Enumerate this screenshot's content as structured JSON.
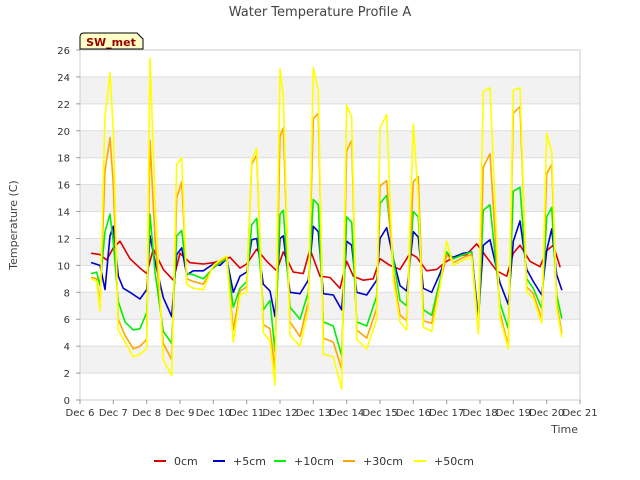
{
  "chart_data": {
    "type": "line",
    "title": "Water Temperature Profile A",
    "xlabel": "Time",
    "ylabel": "Temperature (C)",
    "badge": "SW_met",
    "xlim": [
      6,
      21
    ],
    "ylim": [
      0,
      26
    ],
    "x_ticks": [
      6,
      7,
      8,
      9,
      10,
      11,
      12,
      13,
      14,
      15,
      16,
      17,
      18,
      19,
      20,
      21
    ],
    "x_tick_labels": [
      "Dec 6",
      "Dec 7",
      "Dec 8",
      "Dec 9",
      "Dec 10",
      "Dec 11",
      "Dec 12",
      "Dec 13",
      "Dec 14",
      "Dec 15",
      "Dec 16",
      "Dec 17",
      "Dec 18",
      "Dec 19",
      "Dec 20",
      "Dec 21"
    ],
    "y_ticks": [
      0,
      2,
      4,
      6,
      8,
      10,
      12,
      14,
      16,
      18,
      20,
      22,
      24,
      26
    ],
    "y_tick_labels": [
      "0",
      "2",
      "4",
      "6",
      "8",
      "10",
      "12",
      "14",
      "16",
      "18",
      "20",
      "22",
      "24",
      "26"
    ],
    "grid": "horizontal bands",
    "legend_position": "bottom",
    "series": [
      {
        "name": "0cm",
        "color": "#dd0000",
        "x": [
          6.35,
          6.6,
          6.8,
          7.0,
          7.2,
          7.5,
          7.8,
          8.0,
          8.2,
          8.5,
          8.8,
          9.0,
          9.3,
          9.7,
          10.0,
          10.3,
          10.5,
          10.8,
          11.0,
          11.3,
          11.6,
          11.9,
          12.1,
          12.4,
          12.7,
          12.9,
          13.2,
          13.5,
          13.8,
          14.0,
          14.2,
          14.5,
          14.8,
          15.0,
          15.3,
          15.6,
          15.9,
          16.1,
          16.4,
          16.7,
          17.0,
          17.3,
          17.6,
          17.9,
          18.2,
          18.5,
          18.8,
          19.0,
          19.2,
          19.5,
          19.8,
          20.0,
          20.2,
          20.4
        ],
        "y": [
          10.9,
          10.8,
          10.4,
          11.3,
          11.8,
          10.5,
          9.8,
          9.4,
          11.2,
          9.7,
          8.9,
          10.9,
          10.2,
          10.1,
          10.2,
          10.4,
          10.6,
          9.8,
          10.1,
          11.2,
          10.3,
          9.6,
          11.0,
          9.5,
          9.4,
          11.2,
          9.2,
          9.1,
          8.3,
          10.3,
          9.2,
          8.9,
          9.0,
          10.5,
          10.0,
          9.7,
          10.9,
          10.6,
          9.6,
          9.7,
          10.3,
          10.7,
          10.8,
          11.6,
          10.6,
          9.6,
          9.2,
          10.9,
          11.5,
          10.3,
          9.9,
          11.1,
          11.5,
          9.9
        ]
      },
      {
        "name": "+5cm",
        "color": "#0000cc",
        "x": [
          6.35,
          6.6,
          6.75,
          6.9,
          7.0,
          7.15,
          7.3,
          7.5,
          7.8,
          8.0,
          8.1,
          8.25,
          8.5,
          8.75,
          8.9,
          9.05,
          9.2,
          9.4,
          9.7,
          10.0,
          10.2,
          10.4,
          10.6,
          10.8,
          11.0,
          11.15,
          11.3,
          11.5,
          11.7,
          11.85,
          12.0,
          12.1,
          12.3,
          12.6,
          12.85,
          13.0,
          13.15,
          13.3,
          13.6,
          13.85,
          14.0,
          14.15,
          14.3,
          14.6,
          14.9,
          15.0,
          15.2,
          15.4,
          15.6,
          15.8,
          16.0,
          16.15,
          16.3,
          16.55,
          16.8,
          17.0,
          17.2,
          17.5,
          17.75,
          17.95,
          18.1,
          18.3,
          18.6,
          18.85,
          19.0,
          19.2,
          19.4,
          19.6,
          19.85,
          20.0,
          20.15,
          20.3,
          20.45
        ],
        "y": [
          10.2,
          10.0,
          8.2,
          12.2,
          12.9,
          9.2,
          8.3,
          8.0,
          7.5,
          8.2,
          12.2,
          10.3,
          7.6,
          6.2,
          10.8,
          11.3,
          9.3,
          9.6,
          9.6,
          10.1,
          10.0,
          10.5,
          8.0,
          9.2,
          9.5,
          11.9,
          12.0,
          8.6,
          8.1,
          6.2,
          12.0,
          12.2,
          8.0,
          7.9,
          8.9,
          12.9,
          12.5,
          7.9,
          7.8,
          6.7,
          11.8,
          11.5,
          8.0,
          7.8,
          8.9,
          12.0,
          12.8,
          10.5,
          8.5,
          8.1,
          12.5,
          12.1,
          8.3,
          8.0,
          9.4,
          10.8,
          10.6,
          10.9,
          11.0,
          6.0,
          11.5,
          11.9,
          8.7,
          7.1,
          11.8,
          13.3,
          9.7,
          8.8,
          7.8,
          11.1,
          12.7,
          9.3,
          8.2
        ]
      },
      {
        "name": "+10cm",
        "color": "#00ee00",
        "x": [
          6.35,
          6.5,
          6.6,
          6.75,
          6.9,
          7.0,
          7.15,
          7.35,
          7.6,
          7.8,
          8.0,
          8.1,
          8.25,
          8.5,
          8.75,
          8.9,
          9.05,
          9.2,
          9.4,
          9.7,
          10.0,
          10.2,
          10.4,
          10.6,
          10.8,
          11.0,
          11.15,
          11.3,
          11.5,
          11.7,
          11.85,
          12.0,
          12.1,
          12.3,
          12.6,
          12.85,
          13.0,
          13.15,
          13.3,
          13.6,
          13.85,
          14.0,
          14.15,
          14.3,
          14.6,
          14.9,
          15.0,
          15.2,
          15.4,
          15.6,
          15.8,
          16.0,
          16.15,
          16.3,
          16.55,
          16.8,
          17.0,
          17.2,
          17.5,
          17.75,
          17.95,
          18.1,
          18.3,
          18.6,
          18.85,
          19.0,
          19.2,
          19.4,
          19.6,
          19.85,
          20.0,
          20.15,
          20.3,
          20.45
        ],
        "y": [
          9.4,
          9.5,
          8.5,
          12.5,
          13.8,
          11.7,
          7.3,
          5.8,
          5.2,
          5.3,
          6.5,
          13.8,
          9.5,
          5.1,
          4.2,
          12.2,
          12.6,
          9.4,
          9.3,
          9.0,
          9.8,
          10.2,
          10.5,
          6.9,
          8.3,
          8.8,
          13.0,
          13.5,
          6.7,
          7.4,
          3.6,
          13.8,
          14.1,
          6.9,
          6.0,
          8.0,
          14.9,
          14.5,
          5.8,
          5.5,
          3.3,
          13.6,
          13.2,
          5.8,
          5.5,
          7.7,
          14.6,
          15.2,
          10.5,
          7.4,
          7.0,
          14.0,
          13.6,
          6.7,
          6.3,
          8.9,
          11.0,
          10.5,
          10.8,
          11.0,
          5.4,
          14.1,
          14.5,
          7.2,
          5.3,
          15.5,
          15.8,
          9.0,
          8.3,
          6.8,
          13.6,
          14.3,
          7.8,
          6.1
        ]
      },
      {
        "name": "+30cm",
        "color": "#ffa500",
        "x": [
          6.35,
          6.5,
          6.6,
          6.75,
          6.9,
          7.0,
          7.15,
          7.35,
          7.6,
          7.8,
          8.0,
          8.1,
          8.25,
          8.5,
          8.75,
          8.9,
          9.05,
          9.2,
          9.4,
          9.7,
          10.0,
          10.2,
          10.4,
          10.6,
          10.8,
          11.0,
          11.15,
          11.3,
          11.5,
          11.7,
          11.85,
          12.0,
          12.1,
          12.3,
          12.6,
          12.85,
          13.0,
          13.15,
          13.3,
          13.6,
          13.85,
          14.0,
          14.15,
          14.3,
          14.6,
          14.9,
          15.0,
          15.2,
          15.4,
          15.6,
          15.8,
          16.0,
          16.15,
          16.3,
          16.55,
          16.8,
          17.0,
          17.2,
          17.5,
          17.75,
          17.95,
          18.1,
          18.3,
          18.6,
          18.85,
          19.0,
          19.2,
          19.4,
          19.6,
          19.85,
          20.0,
          20.15,
          20.3,
          20.45
        ],
        "y": [
          9.1,
          9.0,
          7.0,
          17.0,
          19.5,
          16.0,
          6.0,
          4.8,
          3.8,
          4.0,
          4.5,
          19.3,
          12.0,
          4.2,
          3.0,
          15.0,
          16.2,
          9.0,
          8.8,
          8.6,
          9.9,
          10.3,
          10.6,
          5.2,
          8.1,
          8.4,
          17.5,
          18.2,
          5.6,
          5.3,
          2.3,
          19.6,
          20.2,
          5.8,
          4.7,
          7.3,
          20.9,
          21.3,
          4.6,
          4.3,
          2.3,
          18.5,
          19.3,
          5.2,
          4.6,
          6.8,
          15.9,
          16.3,
          9.5,
          6.3,
          5.9,
          16.2,
          16.6,
          5.9,
          5.7,
          8.6,
          10.8,
          10.2,
          10.6,
          10.8,
          5.2,
          17.3,
          18.3,
          6.5,
          4.0,
          21.3,
          21.8,
          8.4,
          7.9,
          6.0,
          16.8,
          17.5,
          7.2,
          5.0
        ]
      },
      {
        "name": "+50cm",
        "color": "#ffff00",
        "x": [
          6.35,
          6.5,
          6.6,
          6.75,
          6.9,
          7.0,
          7.15,
          7.35,
          7.6,
          7.8,
          8.0,
          8.1,
          8.25,
          8.5,
          8.75,
          8.9,
          9.05,
          9.2,
          9.4,
          9.7,
          10.0,
          10.2,
          10.4,
          10.6,
          10.8,
          11.0,
          11.15,
          11.3,
          11.5,
          11.7,
          11.85,
          12.0,
          12.1,
          12.3,
          12.6,
          12.85,
          13.0,
          13.15,
          13.3,
          13.6,
          13.85,
          14.0,
          14.15,
          14.3,
          14.6,
          14.9,
          15.0,
          15.2,
          15.4,
          15.6,
          15.8,
          16.0,
          16.15,
          16.3,
          16.55,
          16.8,
          17.0,
          17.2,
          17.5,
          17.75,
          17.95,
          18.1,
          18.3,
          18.6,
          18.85,
          19.0,
          19.2,
          19.4,
          19.6,
          19.85,
          20.0,
          20.15,
          20.3,
          20.45
        ],
        "y": [
          9.0,
          8.8,
          6.6,
          21.0,
          24.3,
          20.0,
          5.2,
          4.3,
          3.2,
          3.4,
          3.8,
          25.4,
          15.0,
          3.0,
          1.8,
          17.5,
          18.0,
          8.6,
          8.3,
          8.2,
          10.0,
          10.4,
          10.7,
          4.3,
          7.8,
          8.0,
          17.8,
          18.7,
          5.0,
          4.4,
          1.1,
          24.6,
          22.5,
          4.8,
          4.0,
          6.7,
          24.7,
          23.0,
          3.4,
          3.2,
          0.8,
          21.9,
          21.0,
          4.5,
          3.8,
          6.0,
          20.2,
          21.2,
          8.9,
          5.8,
          5.2,
          20.5,
          15.0,
          5.4,
          5.1,
          8.4,
          11.8,
          10.0,
          10.4,
          10.6,
          4.9,
          22.9,
          23.2,
          6.1,
          3.8,
          23.0,
          23.2,
          8.0,
          7.6,
          5.7,
          19.8,
          18.5,
          6.8,
          4.7
        ]
      }
    ]
  }
}
